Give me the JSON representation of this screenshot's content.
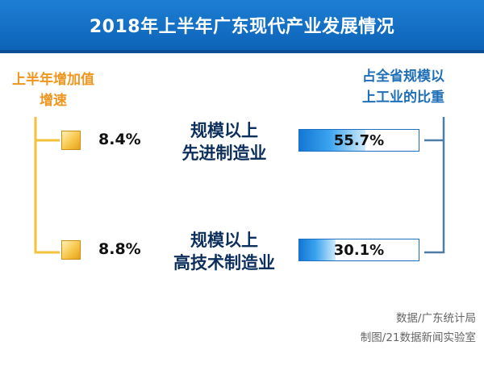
{
  "title": "2018年上半年广东现代产业发展情况",
  "left_header": [
    "上半年增加值",
    "增速"
  ],
  "right_header": [
    "占全省规模以",
    "上工业的比重"
  ],
  "source": {
    "line1": "数据/广东统计局",
    "line2": "制图/21数据新闻实验室"
  },
  "colors": {
    "title_bg": "#0d63b8",
    "left_accent": "#ef9620",
    "bracket_yellow": "#f3c13b",
    "right_accent": "#1f6fb8",
    "bar_blue": "#1377d4"
  },
  "chart_data": {
    "type": "table",
    "rows": [
      {
        "name": [
          "规模以上",
          "先进制造业"
        ],
        "growth": 8.4,
        "growth_label": "8.4%",
        "share": 55.7,
        "share_label": "55.7%"
      },
      {
        "name": [
          "规模以上",
          "高技术制造业"
        ],
        "growth": 8.8,
        "growth_label": "8.8%",
        "share": 30.1,
        "share_label": "30.1%"
      }
    ]
  }
}
